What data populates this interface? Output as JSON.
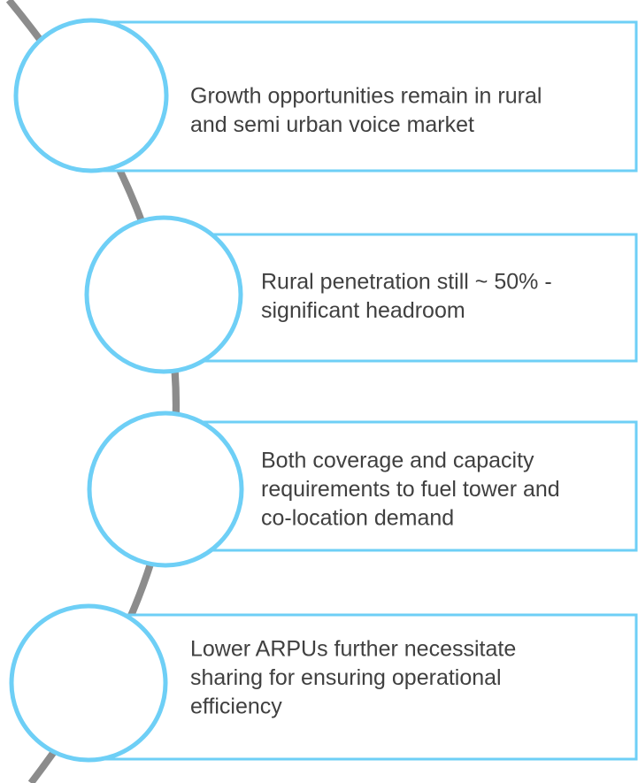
{
  "items": [
    {
      "lines": [
        "Growth opportunities remain in rural",
        "and semi urban voice market"
      ]
    },
    {
      "lines": [
        "Rural penetration still ~ 50% -",
        "significant headroom"
      ]
    },
    {
      "lines": [
        "Both coverage and capacity",
        "requirements to fuel tower and",
        "co-location demand"
      ]
    },
    {
      "lines": [
        "Lower ARPUs further necessitate",
        "sharing for ensuring operational",
        "efficiency"
      ]
    }
  ]
}
